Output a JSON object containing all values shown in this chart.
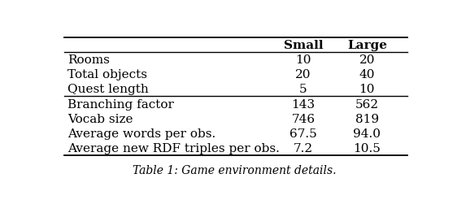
{
  "col_headers": [
    "Small",
    "Large"
  ],
  "rows": [
    {
      "label": "Rooms",
      "small": "10",
      "large": "20",
      "group": 1
    },
    {
      "label": "Total objects",
      "small": "20",
      "large": "40",
      "group": 1
    },
    {
      "label": "Quest length",
      "small": "5",
      "large": "10",
      "group": 1
    },
    {
      "label": "Branching factor",
      "small": "143",
      "large": "562",
      "group": 2
    },
    {
      "label": "Vocab size",
      "small": "746",
      "large": "819",
      "group": 2
    },
    {
      "label": "Average words per obs.",
      "small": "67.5",
      "large": "94.0",
      "group": 2
    },
    {
      "label": "Average new RDF triples per obs.",
      "small": "7.2",
      "large": "10.5",
      "group": 2
    }
  ],
  "caption": "Table 1: Game environment details.",
  "bg_color": "#ffffff",
  "text_color": "#000000",
  "header_fontsize": 11,
  "body_fontsize": 11,
  "caption_fontsize": 10
}
